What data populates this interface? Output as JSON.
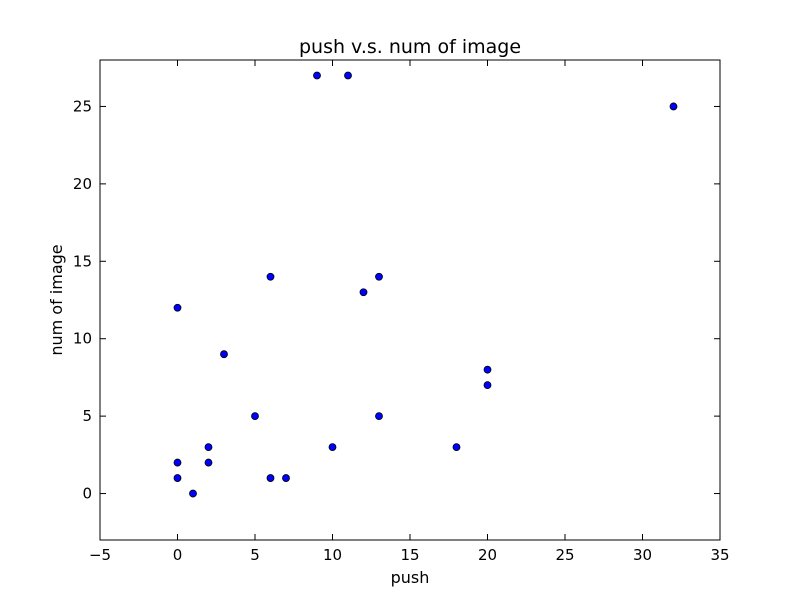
{
  "chart_data": {
    "type": "scatter",
    "title": "push v.s. num of image",
    "xlabel": "push",
    "ylabel": "num of image",
    "xlim": [
      -5,
      35
    ],
    "ylim": [
      -3,
      28
    ],
    "xticks": [
      -5,
      0,
      5,
      10,
      15,
      20,
      25,
      30,
      35
    ],
    "yticks": [
      0,
      5,
      10,
      15,
      20,
      25
    ],
    "grid": false,
    "marker_color": "#0000ff",
    "series": [
      {
        "points": [
          {
            "x": 0,
            "y": 12
          },
          {
            "x": 0,
            "y": 2
          },
          {
            "x": 0,
            "y": 1
          },
          {
            "x": 1,
            "y": 0
          },
          {
            "x": 2,
            "y": 3
          },
          {
            "x": 2,
            "y": 2
          },
          {
            "x": 3,
            "y": 9
          },
          {
            "x": 5,
            "y": 5
          },
          {
            "x": 6,
            "y": 14
          },
          {
            "x": 6,
            "y": 1
          },
          {
            "x": 7,
            "y": 1
          },
          {
            "x": 9,
            "y": 27
          },
          {
            "x": 10,
            "y": 3
          },
          {
            "x": 11,
            "y": 27
          },
          {
            "x": 12,
            "y": 13
          },
          {
            "x": 13,
            "y": 14
          },
          {
            "x": 13,
            "y": 5
          },
          {
            "x": 18,
            "y": 3
          },
          {
            "x": 20,
            "y": 8
          },
          {
            "x": 20,
            "y": 7
          },
          {
            "x": 32,
            "y": 25
          }
        ]
      }
    ]
  }
}
